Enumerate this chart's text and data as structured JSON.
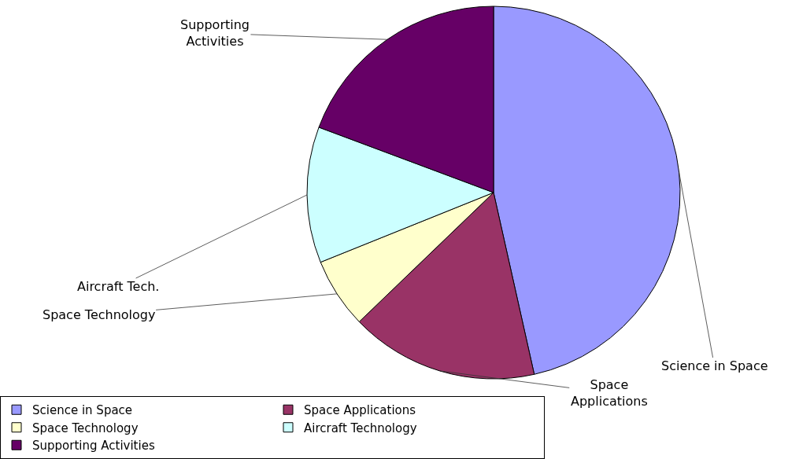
{
  "chart_data": {
    "type": "pie",
    "categories": [
      "Science in Space",
      "Space Applications",
      "Space Technology",
      "Aircraft Technology",
      "Supporting Activities"
    ],
    "values": [
      46.5,
      16.3,
      6.1,
      11.8,
      19.3
    ],
    "colors": [
      "#9999ff",
      "#993366",
      "#ffffcc",
      "#ccffff",
      "#660066"
    ],
    "annotations": [
      "Science in Space",
      "Space Applications",
      "Space Technology",
      "Aircraft Tech.",
      "Supporting Activities"
    ],
    "legend": "bottom left"
  }
}
